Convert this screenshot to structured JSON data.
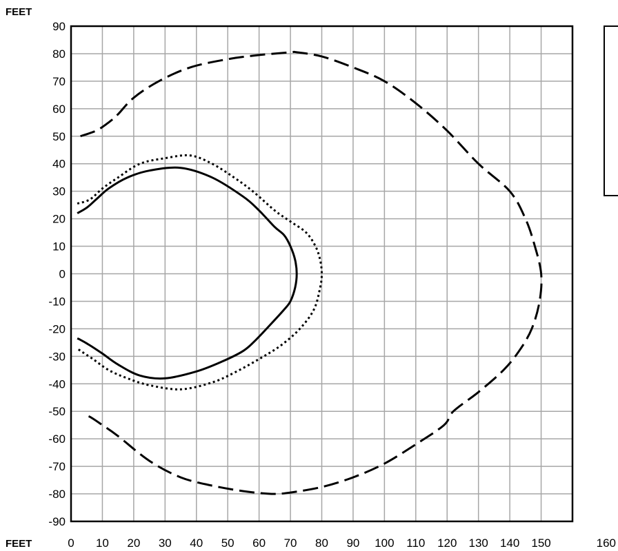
{
  "chart_data": {
    "type": "line",
    "title": "",
    "xlabel": "FEET",
    "ylabel": "FEET",
    "xlim": [
      0,
      160
    ],
    "ylim": [
      -90,
      90
    ],
    "x_ticks": [
      "0",
      "10",
      "20",
      "30",
      "40",
      "50",
      "60",
      "70",
      "80",
      "90",
      "100",
      "110",
      "120",
      "130",
      "140",
      "150",
      "160"
    ],
    "y_ticks": [
      "90",
      "80",
      "70",
      "60",
      "50",
      "40",
      "30",
      "20",
      "10",
      "0",
      "-10",
      "-20",
      "-30",
      "-40",
      "-50",
      "-60",
      "-70",
      "-80",
      "-90"
    ],
    "grid": true,
    "series": [
      {
        "style": "solid",
        "x": [
          2,
          5,
          8,
          12,
          18,
          25,
          35,
          45,
          55,
          60,
          65,
          68,
          70,
          71.5,
          72,
          71.5,
          70,
          68,
          64,
          59,
          55,
          48,
          40,
          30,
          22,
          15,
          10,
          6,
          3,
          2
        ],
        "y": [
          22,
          24,
          27,
          31,
          35,
          37.5,
          38.5,
          35,
          28,
          23,
          17,
          14,
          10,
          5,
          0,
          -5,
          -10,
          -13,
          -18,
          -24,
          -28,
          -32,
          -35.5,
          -38,
          -37,
          -33,
          -29,
          -26,
          -24,
          -23.5
        ]
      },
      {
        "style": "dotted",
        "x": [
          2,
          6,
          10,
          15,
          22,
          30,
          38,
          45,
          52,
          58,
          65,
          70,
          75,
          78,
          79.5,
          80,
          79.5,
          77.5,
          73,
          67,
          60,
          52,
          45,
          35,
          25,
          18,
          12,
          7,
          3,
          2
        ],
        "y": [
          25.5,
          27,
          31,
          35,
          40,
          42,
          43,
          40,
          35,
          30,
          23,
          19,
          15,
          10,
          5,
          0,
          -5,
          -13,
          -20,
          -26,
          -31,
          -36,
          -39.5,
          -42,
          -40.5,
          -38,
          -35,
          -31,
          -28,
          -27
        ]
      },
      {
        "style": "dashed",
        "x": [
          3,
          8,
          12,
          15,
          20,
          28,
          38,
          50,
          60,
          70,
          72,
          80,
          90,
          100,
          110,
          120,
          130,
          140,
          145,
          148,
          150,
          149.5,
          147,
          143,
          138,
          130,
          122,
          119,
          110,
          100,
          90,
          80,
          70,
          64,
          55,
          45,
          35,
          25,
          15,
          10,
          6,
          4
        ],
        "y": [
          50,
          52,
          55,
          58,
          64,
          70,
          75,
          78,
          79.5,
          80.5,
          80.5,
          79,
          75,
          70,
          62,
          52,
          40,
          30,
          20,
          10,
          0,
          -10,
          -20,
          -28,
          -35,
          -43,
          -50,
          -55,
          -62,
          -69,
          -74,
          -77.5,
          -79.5,
          -80,
          -79,
          -77,
          -74,
          -68,
          -59,
          -55,
          -52,
          -51.5
        ]
      }
    ]
  }
}
